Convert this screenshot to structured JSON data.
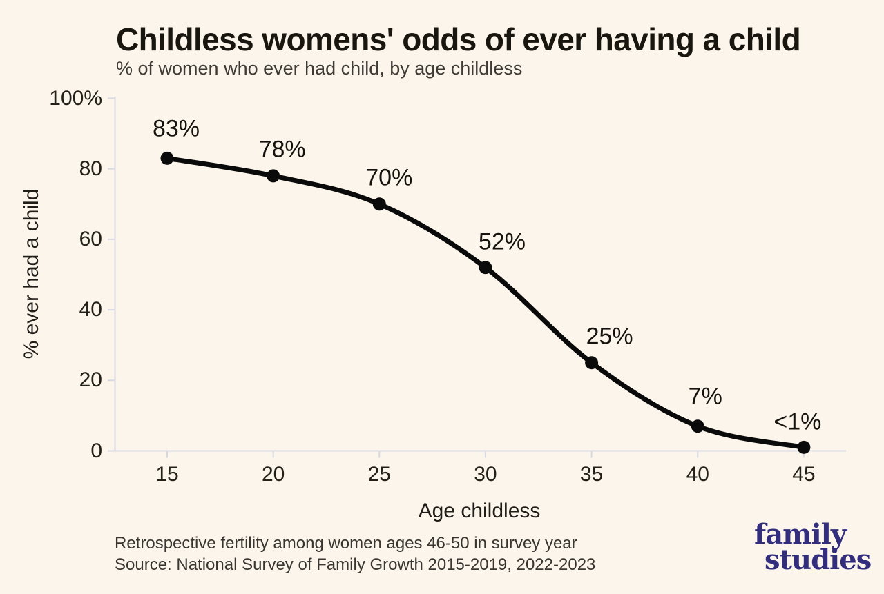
{
  "header": {
    "title": "Childless womens' odds of ever having a child",
    "subtitle": "% of women who ever had child, by age childless"
  },
  "footer": {
    "line1": "Retrospective fertility among women ages 46-50 in survey year",
    "line2": "Source: National Survey of Family Growth 2015-2019, 2022-2023"
  },
  "logo": {
    "line1": "family",
    "line2": "studies"
  },
  "colors": {
    "background": "#FBF5EB",
    "axis": "#D8D8E2",
    "line": "#0A0A0A",
    "title": "#19150F",
    "subtitle": "#3E3A35",
    "footer": "#393530",
    "tick": "#232019",
    "logo": "#322D7D"
  },
  "chart_data": {
    "type": "line",
    "title": "Childless womens' odds of ever having a child",
    "subtitle": "% of women who ever had child, by age childless",
    "xlabel": "Age childless",
    "ylabel": "% ever had a child",
    "x": [
      15,
      20,
      25,
      30,
      35,
      40,
      45
    ],
    "values": [
      83,
      78,
      70,
      52,
      25,
      7,
      1
    ],
    "point_labels": [
      "83%",
      "78%",
      "70%",
      "52%",
      "25%",
      "7%",
      "<1%"
    ],
    "x_tick_labels": [
      "15",
      "20",
      "25",
      "30",
      "35",
      "40",
      "45"
    ],
    "y_ticks": [
      0,
      20,
      40,
      60,
      80,
      100
    ],
    "y_tick_labels": [
      "0",
      "20",
      "40",
      "60",
      "80",
      "100%"
    ],
    "xlim": [
      15,
      45
    ],
    "ylim": [
      0,
      100
    ],
    "grid": false,
    "legend": null,
    "line_style": "smooth",
    "markers": "filled-circle"
  }
}
